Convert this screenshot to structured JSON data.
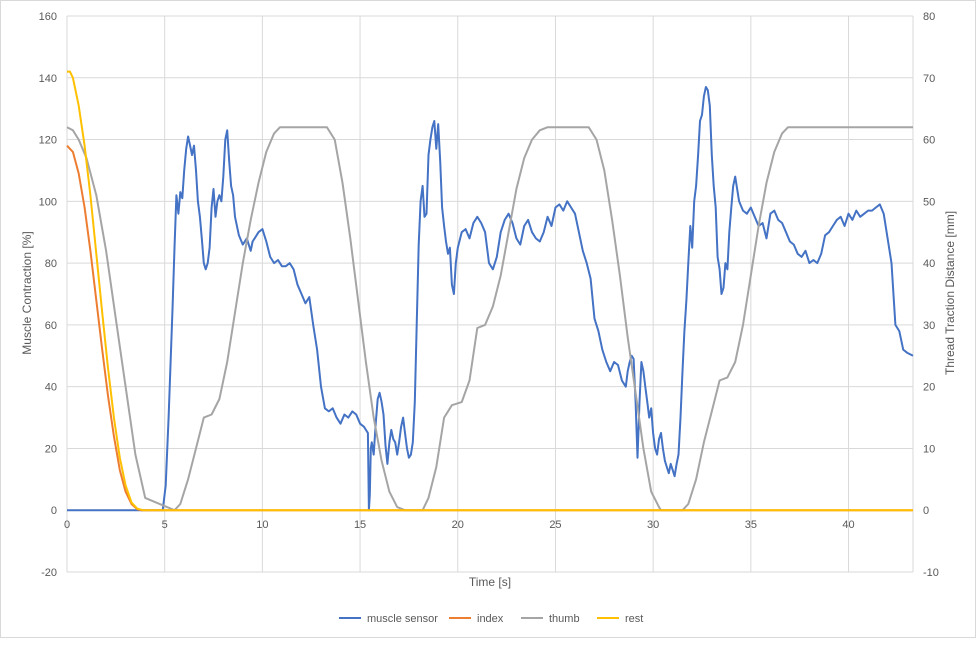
{
  "chart_data": {
    "type": "line",
    "xlabel": "Time [s]",
    "ylabel_left": "Muscle Contraction [%]",
    "ylabel_right": "Thread Traction Distance [mm]",
    "xlim": [
      0,
      43.3
    ],
    "ylim_left": [
      -20,
      160
    ],
    "ylim_right": [
      -10,
      80
    ],
    "x_ticks": [
      "0",
      "5",
      "10",
      "15",
      "20",
      "25",
      "30",
      "35",
      "40"
    ],
    "y_left_ticks": [
      "-20",
      "0",
      "20",
      "40",
      "60",
      "80",
      "100",
      "120",
      "140",
      "160"
    ],
    "y_right_ticks": [
      "-10",
      "0",
      "10",
      "20",
      "30",
      "40",
      "50",
      "60",
      "70",
      "80"
    ],
    "grid": "vertical and horizontal",
    "legend_position": "bottom",
    "colors": {
      "muscle_sensor": "#4472c4",
      "index": "#ed7d31",
      "thumb": "#a5a5a5",
      "rest": "#ffc000",
      "grid": "#d9d9d9"
    },
    "series": [
      {
        "name": "muscle sensor",
        "axis": "left",
        "x": [
          0,
          4.9,
          5.05,
          5.2,
          5.4,
          5.5,
          5.55,
          5.6,
          5.7,
          5.8,
          5.9,
          6.0,
          6.1,
          6.2,
          6.3,
          6.4,
          6.5,
          6.6,
          6.7,
          6.8,
          6.9,
          7.0,
          7.1,
          7.2,
          7.3,
          7.4,
          7.5,
          7.6,
          7.7,
          7.8,
          7.9,
          8.0,
          8.1,
          8.2,
          8.3,
          8.4,
          8.5,
          8.6,
          8.8,
          9.0,
          9.2,
          9.4,
          9.5,
          9.6,
          9.8,
          10.0,
          10.2,
          10.4,
          10.6,
          10.8,
          11.0,
          11.2,
          11.4,
          11.6,
          11.8,
          12.0,
          12.2,
          12.4,
          12.6,
          12.8,
          13.0,
          13.2,
          13.4,
          13.6,
          13.8,
          14.0,
          14.2,
          14.4,
          14.6,
          14.8,
          15.0,
          15.2,
          15.4,
          15.45,
          15.5,
          15.55,
          15.6,
          15.7,
          15.8,
          15.9,
          16.0,
          16.1,
          16.2,
          16.3,
          16.4,
          16.5,
          16.6,
          16.7,
          16.8,
          16.9,
          17.0,
          17.1,
          17.2,
          17.3,
          17.4,
          17.5,
          17.6,
          17.7,
          17.8,
          17.9,
          18.0,
          18.1,
          18.2,
          18.3,
          18.4,
          18.5,
          18.6,
          18.7,
          18.8,
          18.9,
          19.0,
          19.1,
          19.2,
          19.3,
          19.4,
          19.5,
          19.6,
          19.7,
          19.8,
          19.9,
          20.0,
          20.2,
          20.4,
          20.6,
          20.8,
          21.0,
          21.2,
          21.4,
          21.6,
          21.8,
          22.0,
          22.2,
          22.4,
          22.6,
          22.8,
          23.0,
          23.2,
          23.4,
          23.6,
          23.8,
          24.0,
          24.2,
          24.4,
          24.6,
          24.8,
          25.0,
          25.2,
          25.4,
          25.6,
          25.8,
          26.0,
          26.2,
          26.4,
          26.6,
          26.8,
          27.0,
          27.2,
          27.4,
          27.6,
          27.8,
          28.0,
          28.2,
          28.4,
          28.6,
          28.7,
          28.8,
          28.9,
          29.0,
          29.1,
          29.2,
          29.3,
          29.4,
          29.5,
          29.6,
          29.7,
          29.8,
          29.9,
          30.0,
          30.1,
          30.2,
          30.3,
          30.4,
          30.5,
          30.6,
          30.7,
          30.8,
          30.9,
          31.0,
          31.1,
          31.2,
          31.3,
          31.4,
          31.5,
          31.6,
          31.7,
          31.8,
          31.9,
          32.0,
          32.1,
          32.2,
          32.3,
          32.4,
          32.5,
          32.6,
          32.7,
          32.8,
          32.9,
          33.0,
          33.1,
          33.2,
          33.3,
          33.4,
          33.5,
          33.6,
          33.7,
          33.8,
          33.9,
          34.0,
          34.1,
          34.2,
          34.4,
          34.6,
          34.8,
          35.0,
          35.2,
          35.4,
          35.6,
          35.8,
          36.0,
          36.2,
          36.4,
          36.6,
          36.8,
          37.0,
          37.2,
          37.4,
          37.6,
          37.8,
          38.0,
          38.2,
          38.4,
          38.6,
          38.8,
          39.0,
          39.2,
          39.4,
          39.6,
          39.8,
          40.0,
          40.2,
          40.4,
          40.6,
          40.8,
          41.0,
          41.2,
          41.4,
          41.6,
          41.8,
          42.0,
          42.2,
          42.4,
          42.6,
          42.8,
          43.0,
          43.3
        ],
        "values": [
          0,
          0,
          8,
          30,
          65,
          85,
          93,
          102,
          96,
          103,
          101,
          110,
          117,
          121,
          118,
          115,
          118,
          110,
          100,
          95,
          88,
          80,
          78,
          80,
          85,
          98,
          104,
          95,
          100,
          102,
          100,
          108,
          120,
          123,
          113,
          105,
          102,
          95,
          89,
          86,
          88,
          84,
          87,
          88,
          90,
          91,
          87,
          82,
          80,
          81,
          79,
          79,
          80,
          78,
          73,
          70,
          67,
          69,
          60,
          52,
          40,
          33,
          32,
          33,
          30,
          28,
          31,
          30,
          32,
          31,
          28,
          27,
          25,
          0,
          5,
          20,
          22,
          18,
          28,
          36,
          38,
          35,
          31,
          21,
          15,
          22,
          26,
          23,
          22,
          18,
          22,
          27,
          30,
          25,
          20,
          17,
          18,
          22,
          35,
          60,
          86,
          100,
          105,
          95,
          96,
          115,
          120,
          124,
          126,
          117,
          125,
          113,
          98,
          92,
          87,
          83,
          85,
          73,
          70,
          80,
          85,
          90,
          91,
          88,
          93,
          95,
          93,
          90,
          80,
          78,
          82,
          90,
          94,
          96,
          93,
          88,
          86,
          92,
          94,
          90,
          88,
          87,
          90,
          95,
          92,
          98,
          99,
          97,
          100,
          98,
          96,
          90,
          84,
          80,
          75,
          62,
          58,
          52,
          48,
          45,
          48,
          47,
          42,
          40,
          45,
          48,
          50,
          49,
          35,
          17,
          35,
          48,
          45,
          40,
          35,
          30,
          33,
          25,
          20,
          18,
          23,
          25,
          20,
          16,
          14,
          12,
          15,
          13,
          11,
          15,
          18,
          30,
          45,
          58,
          68,
          80,
          92,
          85,
          100,
          105,
          115,
          126,
          128,
          134,
          137,
          136,
          131,
          115,
          105,
          98,
          82,
          78,
          70,
          72,
          80,
          78,
          90,
          98,
          105,
          108,
          100,
          97,
          96,
          98,
          95,
          92,
          93,
          88,
          96,
          97,
          94,
          93,
          90,
          87,
          86,
          83,
          82,
          84,
          80,
          81,
          80,
          83,
          89,
          90,
          92,
          94,
          95,
          92,
          96,
          94,
          97,
          95,
          96,
          97,
          97,
          98,
          99,
          96,
          88,
          80,
          60,
          58,
          52,
          51,
          50
        ]
      },
      {
        "name": "index",
        "axis": "left",
        "x": [
          0,
          0.3,
          0.6,
          0.9,
          1.2,
          1.5,
          1.8,
          2.1,
          2.4,
          2.7,
          3.0,
          3.3,
          3.6,
          3.8,
          4.0,
          43.3
        ],
        "values": [
          118,
          116,
          109,
          98,
          84,
          68,
          52,
          37,
          24,
          13,
          6,
          2,
          0.3,
          0,
          0,
          0
        ]
      },
      {
        "name": "thumb",
        "axis": "right",
        "x": [
          0,
          0.3,
          0.6,
          1.0,
          1.5,
          2.0,
          2.5,
          3.0,
          3.5,
          4.0,
          5.5,
          5.8,
          6.2,
          6.6,
          7.0,
          7.4,
          7.8,
          8.2,
          8.6,
          9.0,
          9.4,
          9.8,
          10.2,
          10.6,
          10.9,
          13.3,
          13.7,
          14.1,
          14.5,
          14.9,
          15.3,
          15.7,
          16.1,
          16.5,
          16.9,
          17.3,
          17.5,
          18.2,
          18.5,
          18.9,
          19.3,
          19.7,
          20.2,
          20.6,
          21.0,
          21.4,
          21.8,
          22.2,
          22.6,
          23.0,
          23.4,
          23.8,
          24.2,
          24.6,
          24.9,
          26.7,
          27.1,
          27.5,
          27.9,
          28.3,
          28.7,
          29.1,
          29.5,
          29.9,
          30.3,
          30.4,
          31.5,
          31.8,
          32.2,
          32.6,
          33.0,
          33.4,
          33.8,
          34.2,
          34.6,
          35.0,
          35.4,
          35.8,
          36.2,
          36.6,
          36.9,
          43.3
        ],
        "values": [
          62,
          61.5,
          60,
          57,
          51,
          42,
          31,
          20,
          9,
          2,
          0,
          1,
          5,
          10,
          15,
          15.5,
          18,
          24,
          32,
          40,
          47,
          53,
          58,
          61,
          62,
          62,
          60,
          53,
          44,
          34,
          24,
          15,
          8,
          3,
          0.5,
          0,
          0,
          0,
          2,
          7,
          15,
          17,
          17.5,
          21,
          29.5,
          30,
          33,
          38,
          45,
          52,
          57,
          60,
          61.5,
          62,
          62,
          62,
          60,
          55,
          47,
          38,
          28,
          19,
          10,
          3,
          0.5,
          0,
          0,
          1,
          5,
          11,
          16,
          21,
          21.5,
          24,
          30,
          38,
          46,
          53,
          58,
          61,
          62,
          62
        ]
      },
      {
        "name": "rest",
        "axis": "left",
        "x": [
          0,
          0.15,
          0.3,
          0.6,
          0.9,
          1.2,
          1.5,
          1.8,
          2.1,
          2.4,
          2.7,
          3.0,
          3.3,
          3.6,
          3.9,
          4.1,
          43.3
        ],
        "values": [
          142,
          142,
          140,
          131,
          118,
          102,
          83,
          64,
          46,
          30,
          17,
          8,
          2.5,
          0.5,
          0,
          0,
          0
        ]
      }
    ]
  }
}
